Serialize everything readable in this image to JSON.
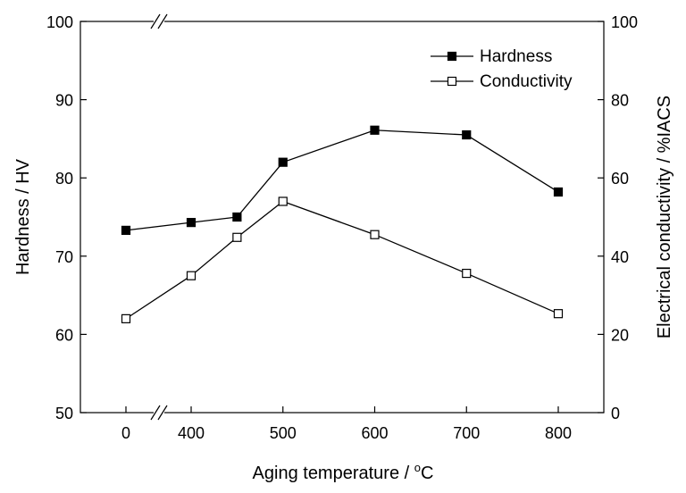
{
  "chart_data": {
    "type": "line",
    "xlabel": "Aging temperature / °C",
    "xlabel_prefix": "Aging temperature / ",
    "xlabel_degree": "o",
    "xlabel_unit": "C",
    "ylabel_left": "Hardness / HV",
    "ylabel_right": "Electrical conductivity / %IACS",
    "x": [
      0,
      400,
      450,
      500,
      600,
      700,
      800
    ],
    "x_tick_labels": [
      "0",
      "400",
      "500",
      "600",
      "700",
      "800"
    ],
    "x_tick_values": [
      0,
      400,
      500,
      600,
      700,
      800
    ],
    "x_axis_break": "between 0 and 400",
    "ylim_left": [
      50,
      100
    ],
    "ylim_right": [
      0,
      100
    ],
    "y_left_ticks": [
      50,
      60,
      70,
      80,
      90,
      100
    ],
    "y_right_ticks": [
      0,
      20,
      40,
      60,
      80,
      100
    ],
    "grid": false,
    "legend_position": "top-right",
    "series": [
      {
        "name": "Hardness",
        "axis": "left",
        "marker": "filled-square",
        "values": [
          73.3,
          74.3,
          75.0,
          82.0,
          86.1,
          85.5,
          78.2
        ]
      },
      {
        "name": "Conductivity",
        "axis": "right",
        "marker": "open-square",
        "values": [
          24.0,
          35.0,
          44.8,
          54.0,
          45.5,
          35.6,
          25.3
        ]
      }
    ]
  }
}
